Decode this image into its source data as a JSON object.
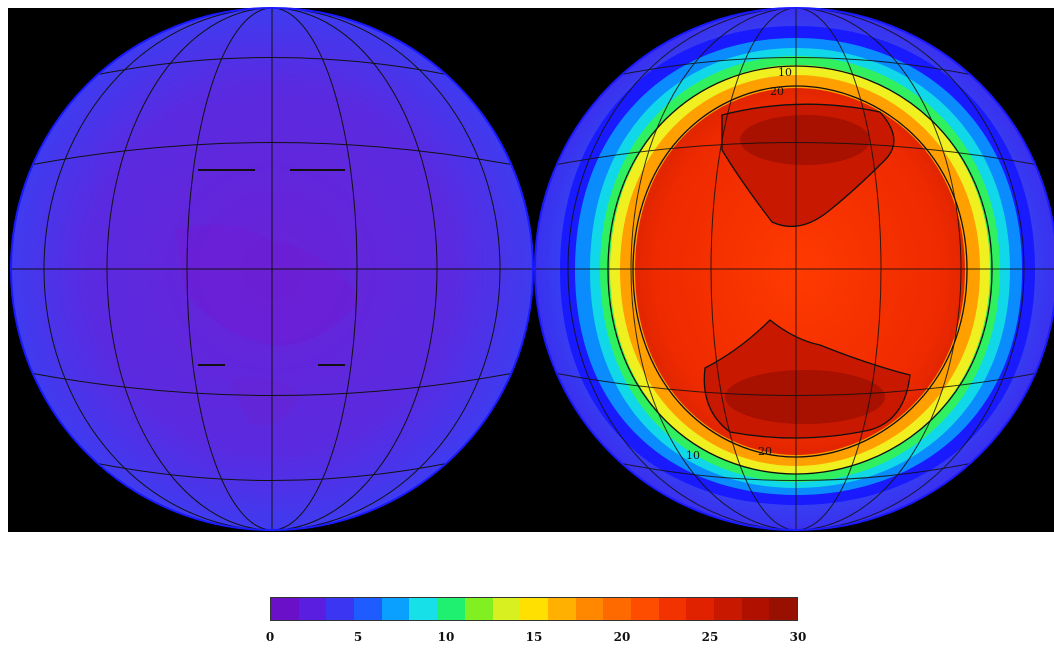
{
  "colorbar": {
    "min": 0,
    "max": 30,
    "tick_labels": [
      "0",
      "5",
      "10",
      "15",
      "20",
      "25",
      "30"
    ],
    "colors": [
      "#6a10c8",
      "#5a1ee0",
      "#3a36f2",
      "#1f5cff",
      "#0aa0ff",
      "#18e0e8",
      "#20f070",
      "#80f020",
      "#d8f020",
      "#ffe000",
      "#ffb000",
      "#ff8800",
      "#ff6a00",
      "#ff4d00",
      "#f23300",
      "#e02200",
      "#c81800",
      "#b01000",
      "#981000"
    ]
  },
  "contour_labels": {
    "upper_outer": "10",
    "upper_inner": "20",
    "lower_outer": "10",
    "lower_inner": "20"
  },
  "panels": [
    {
      "name": "left-hemisphere",
      "colors": [
        "#4b2fe6",
        "#5a28dc",
        "#6a20d8"
      ]
    },
    {
      "name": "right-hemisphere",
      "colors": [
        "#1a1aff",
        "#00d0ff",
        "#ff2a00",
        "#a01000"
      ]
    }
  ]
}
